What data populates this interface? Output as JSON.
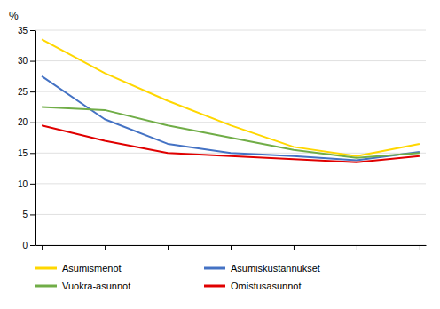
{
  "chart_data": {
    "type": "line",
    "ylabel": "%",
    "x": [
      0,
      1,
      2,
      3,
      4,
      5,
      6
    ],
    "series": [
      {
        "name": "Asumismenot",
        "color": "#FFD700",
        "values": [
          33.5,
          28.0,
          23.5,
          19.5,
          16.0,
          14.5,
          16.5
        ]
      },
      {
        "name": "Asumiskustannukset",
        "color": "#4472C4",
        "values": [
          27.5,
          20.5,
          16.5,
          15.0,
          14.5,
          13.8,
          15.2
        ]
      },
      {
        "name": "Vuokra-asunnot",
        "color": "#70AD47",
        "values": [
          22.5,
          22.0,
          19.5,
          17.5,
          15.5,
          14.2,
          15.0
        ]
      },
      {
        "name": "Omistusasunnot",
        "color": "#E00000",
        "values": [
          19.5,
          17.0,
          15.0,
          14.5,
          14.0,
          13.5,
          14.5
        ]
      }
    ],
    "xlim": [
      -0.1,
      6.1
    ],
    "xticks": [
      0,
      1,
      2,
      3,
      4,
      5,
      6
    ],
    "ylim": [
      0,
      35
    ],
    "yticks": [
      0,
      5,
      10,
      15,
      20,
      25,
      30,
      35
    ],
    "grid": true,
    "legend": "bottom",
    "tick_labels": "y"
  }
}
